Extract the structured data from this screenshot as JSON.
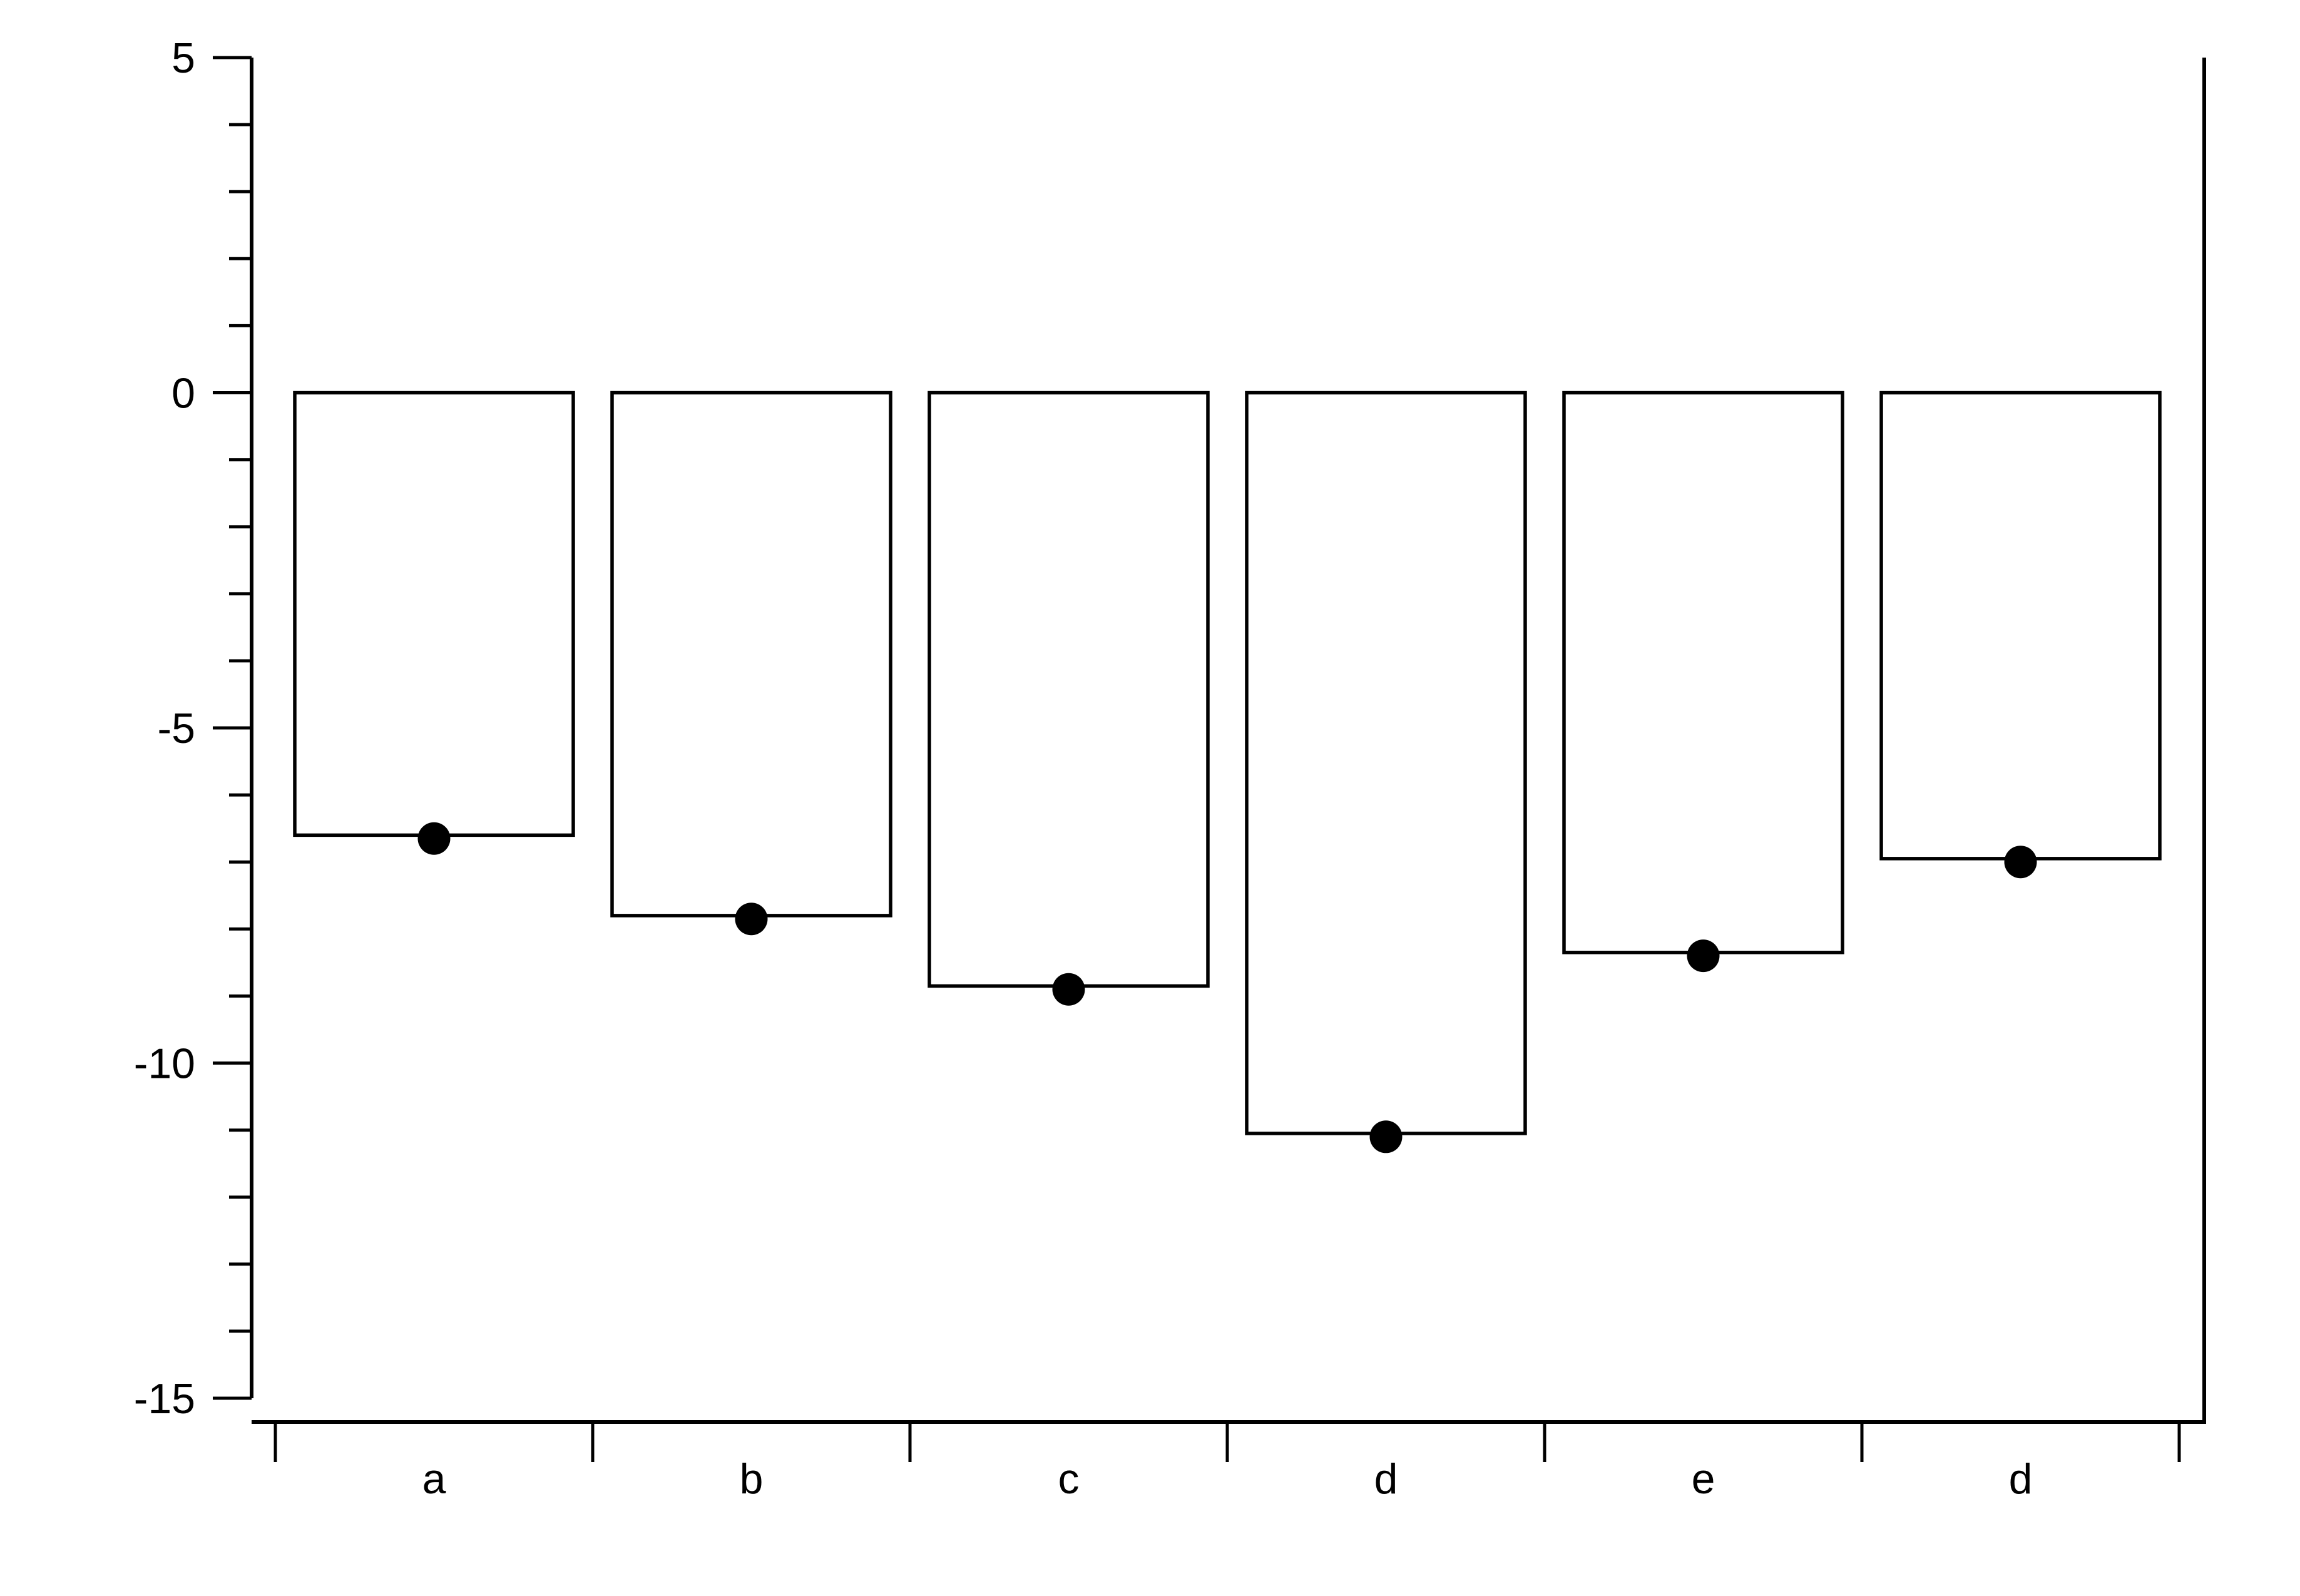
{
  "chart_data": {
    "type": "bar",
    "title": "",
    "xlabel": "",
    "ylabel": "",
    "categories": [
      "a",
      "b",
      "c",
      "d",
      "e",
      "d"
    ],
    "values": [
      -6.6,
      -7.8,
      -8.85,
      -11.05,
      -8.35,
      -6.95
    ],
    "markers": [
      -6.65,
      -7.85,
      -8.9,
      -11.1,
      -8.4,
      -7.0
    ],
    "ylim": [
      -15,
      5
    ],
    "yticks": [
      5,
      0,
      -5,
      -10,
      -15
    ],
    "yticks_minor_step": 1,
    "grid": false,
    "legend": "none",
    "colors": {
      "bar_fill": "#ffffff",
      "bar_stroke": "#000000",
      "marker": "#000000",
      "axis": "#000000"
    }
  }
}
